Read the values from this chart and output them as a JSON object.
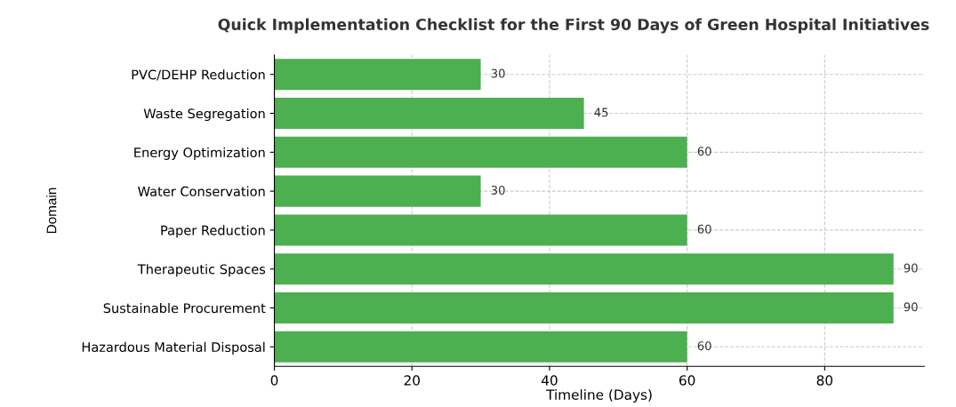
{
  "chart_data": {
    "type": "bar",
    "orientation": "horizontal",
    "title": "Quick Implementation Checklist for the First 90 Days of Green Hospital Initiatives",
    "xlabel": "Timeline (Days)",
    "ylabel": "Domain",
    "categories": [
      "PVC/DEHP Reduction",
      "Waste Segregation",
      "Energy Optimization",
      "Water Conservation",
      "Paper Reduction",
      "Therapeutic Spaces",
      "Sustainable Procurement",
      "Hazardous Material Disposal"
    ],
    "values": [
      30,
      45,
      60,
      30,
      60,
      90,
      90,
      60
    ],
    "color": "#4caf50",
    "xlim": [
      0,
      94.5
    ],
    "xticks": [
      0,
      20,
      40,
      60,
      80
    ],
    "grid": true,
    "data_labels": true
  }
}
